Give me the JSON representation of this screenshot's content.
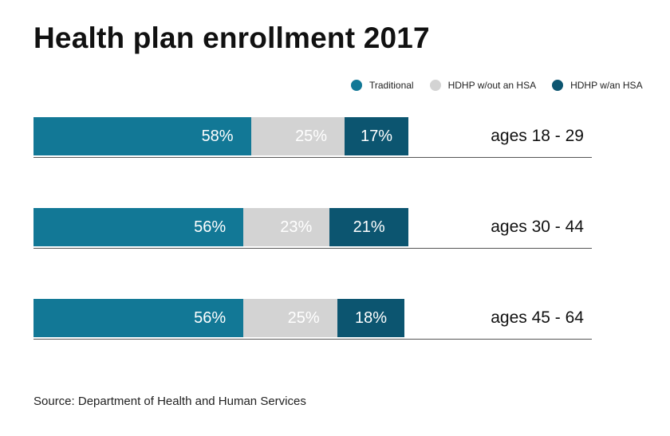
{
  "chart_data": {
    "type": "bar",
    "orientation": "horizontal",
    "stacked": true,
    "title": "Health plan enrollment 2017",
    "categories": [
      "ages 18 - 29",
      "ages 30 - 44",
      "ages 45 - 64"
    ],
    "series": [
      {
        "name": "Traditional",
        "color": "#127896",
        "text_color": "#ffffff",
        "values": [
          58,
          56,
          56
        ]
      },
      {
        "name": "HDHP w/out an HSA",
        "color": "#d3d3d3",
        "text_color": "#ffffff",
        "values": [
          25,
          23,
          25
        ]
      },
      {
        "name": "HDHP w/an HSA",
        "color": "#0c5570",
        "text_color": "#ffffff",
        "values": [
          17,
          21,
          18
        ]
      }
    ],
    "value_suffix": "%",
    "xlim": [
      0,
      100
    ],
    "source": "Source: Department of Health and Human Services"
  }
}
